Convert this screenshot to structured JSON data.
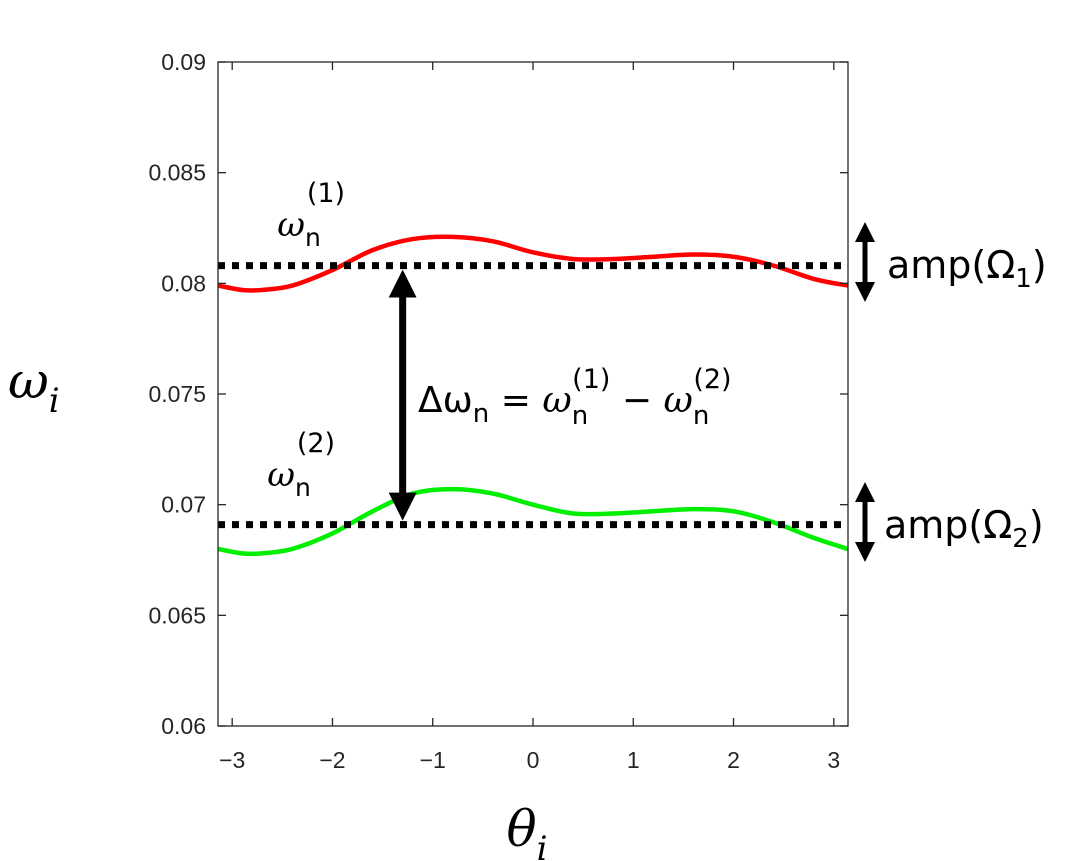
{
  "chart_data": {
    "type": "line",
    "xlim": [
      -3.14159,
      3.14159
    ],
    "ylim": [
      0.06,
      0.09
    ],
    "xticks": [
      -3,
      -2,
      -1,
      0,
      1,
      2,
      3
    ],
    "xtick_labels": [
      "−3",
      "−2",
      "−1",
      "0",
      "1",
      "2",
      "3"
    ],
    "yticks": [
      0.06,
      0.065,
      0.07,
      0.075,
      0.08,
      0.085,
      0.09
    ],
    "ytick_labels": [
      "0.06",
      "0.065",
      "0.07",
      "0.075",
      "0.08",
      "0.085",
      "0.09"
    ],
    "xlabel": {
      "base": "θ",
      "sub": "i"
    },
    "ylabel": {
      "base": "ω",
      "sub": "i"
    },
    "grid": false,
    "series": [
      {
        "color": "#ff0000",
        "x": [
          -3.14,
          -2.9,
          -2.7,
          -2.4,
          -2.0,
          -1.6,
          -1.2,
          -0.8,
          -0.4,
          0.0,
          0.4,
          0.8,
          1.2,
          1.6,
          2.0,
          2.4,
          2.8,
          3.14
        ],
        "y": [
          0.0799,
          0.0797,
          0.0797,
          0.0799,
          0.0806,
          0.0815,
          0.082,
          0.0821,
          0.0819,
          0.0814,
          0.0811,
          0.0811,
          0.0812,
          0.0813,
          0.0812,
          0.0808,
          0.0802,
          0.0799
        ]
      },
      {
        "color": "#00ee00",
        "x": [
          -3.14,
          -2.9,
          -2.7,
          -2.4,
          -2.0,
          -1.6,
          -1.2,
          -0.8,
          -0.4,
          0.0,
          0.4,
          0.8,
          1.2,
          1.6,
          2.0,
          2.4,
          2.8,
          3.14
        ],
        "y": [
          0.068,
          0.0678,
          0.0678,
          0.068,
          0.0687,
          0.0697,
          0.0705,
          0.0707,
          0.0705,
          0.07,
          0.0696,
          0.0696,
          0.0697,
          0.0698,
          0.0697,
          0.0692,
          0.0685,
          0.068
        ]
      }
    ],
    "reference_lines": [
      {
        "y": 0.0808,
        "style": "dotted",
        "color": "#000000"
      },
      {
        "y": 0.0691,
        "style": "dotted",
        "color": "#000000"
      }
    ],
    "annotations": {
      "omega1": {
        "base": "ω",
        "sub": "n",
        "sup": "(1)",
        "x": -2.85,
        "y": 0.0828
      },
      "omega2": {
        "base": "ω",
        "sub": "n",
        "sup": "(2)",
        "x": -2.85,
        "y": 0.071
      },
      "delta_arrow": {
        "x": -1.3,
        "y_from": 0.0808,
        "y_to": 0.0691
      },
      "delta_label": {
        "delta": "Δω",
        "sub": "n",
        "equals": " = ",
        "w1": "ω",
        "w1_sub": "n",
        "w1_sup": "(1)",
        "minus": " − ",
        "w2": "ω",
        "w2_sub": "n",
        "w2_sup": "(2)"
      },
      "amp1": {
        "text": "amp(Ω",
        "sub": "1",
        "close": ")"
      },
      "amp2": {
        "text": "amp(Ω",
        "sub": "2",
        "close": ")"
      }
    }
  }
}
